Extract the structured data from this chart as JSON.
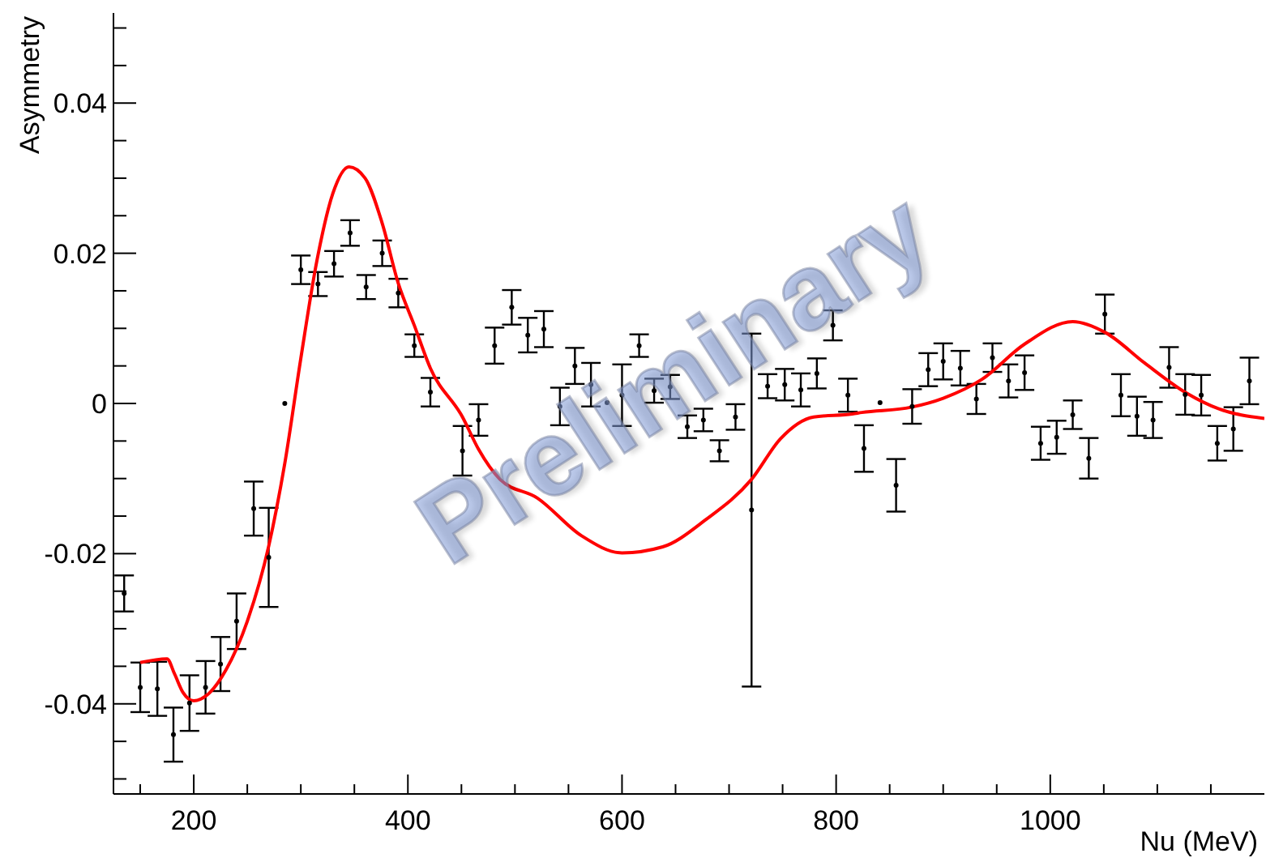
{
  "chart_data": {
    "type": "scatter",
    "xlabel": "Nu (MeV)",
    "ylabel": "Asymmetry",
    "xlim": [
      125,
      1200
    ],
    "ylim": [
      -0.052,
      0.052
    ],
    "xticks": [
      {
        "value": 150,
        "label": null
      },
      200,
      {
        "value": 250,
        "label": null
      },
      {
        "value": 300,
        "label": null
      },
      {
        "value": 350,
        "label": null
      },
      400,
      {
        "value": 450,
        "label": null
      },
      {
        "value": 500,
        "label": null
      },
      {
        "value": 550,
        "label": null
      },
      600,
      {
        "value": 650,
        "label": null
      },
      {
        "value": 700,
        "label": null
      },
      {
        "value": 750,
        "label": null
      },
      800,
      {
        "value": 850,
        "label": null
      },
      {
        "value": 900,
        "label": null
      },
      {
        "value": 950,
        "label": null
      },
      1000,
      {
        "value": 1050,
        "label": null
      },
      {
        "value": 1100,
        "label": null
      },
      {
        "value": 1150,
        "label": null
      }
    ],
    "yticks": [
      {
        "value": -0.05,
        "label": null
      },
      {
        "value": -0.045,
        "label": null
      },
      -0.04,
      {
        "value": -0.035,
        "label": null
      },
      {
        "value": -0.03,
        "label": null
      },
      {
        "value": -0.025,
        "label": null
      },
      -0.02,
      {
        "value": -0.015,
        "label": null
      },
      {
        "value": -0.01,
        "label": null
      },
      {
        "value": -0.005,
        "label": null
      },
      0,
      {
        "value": 0.005,
        "label": null
      },
      {
        "value": 0.01,
        "label": null
      },
      {
        "value": 0.015,
        "label": null
      },
      0.02,
      {
        "value": 0.025,
        "label": null
      },
      {
        "value": 0.03,
        "label": null
      },
      {
        "value": 0.035,
        "label": null
      },
      0.04,
      {
        "value": 0.045,
        "label": null
      },
      {
        "value": 0.05,
        "label": null
      }
    ],
    "grid": false,
    "legend": false,
    "annotations": [
      "Preliminary"
    ],
    "series": [
      {
        "marker": "circle",
        "color": "#000000",
        "x": [
          135,
          150,
          166,
          181,
          196,
          211,
          225,
          240,
          256,
          270,
          285,
          300,
          316,
          331,
          346,
          361,
          376,
          391,
          406,
          421,
          451,
          466,
          481,
          497,
          512,
          527,
          542,
          556,
          571,
          586,
          600,
          616,
          630,
          645,
          661,
          676,
          691,
          706,
          721,
          736,
          752,
          767,
          782,
          797,
          811,
          826,
          841,
          856,
          871,
          886,
          900,
          916,
          931,
          946,
          961,
          976,
          991,
          1006,
          1021,
          1036,
          1051,
          1066,
          1081,
          1096,
          1111,
          1126,
          1141,
          1156,
          1171,
          1186
        ],
        "values": [
          -0.0253,
          -0.0378,
          -0.038,
          -0.0441,
          -0.0399,
          -0.0378,
          -0.0347,
          -0.029,
          -0.014,
          -0.0205,
          0,
          0.0178,
          0.0159,
          0.0186,
          0.0227,
          0.0155,
          0.02,
          0.0147,
          0.0077,
          0.0015,
          -0.0063,
          -0.0022,
          0.0077,
          0.0128,
          0.0091,
          0.0099,
          -0.0004,
          0.005,
          0.0025,
          0.0001,
          0.0011,
          0.0077,
          0.0017,
          0.0022,
          -0.0031,
          -0.0022,
          -0.0063,
          -0.0018,
          -0.0142,
          0.0023,
          0.0025,
          0.0018,
          0.004,
          0.0104,
          0.0011,
          -0.006,
          0.0001,
          -0.0109,
          -0.0004,
          0.0045,
          0.0056,
          0.0047,
          0.0006,
          0.0061,
          0.003,
          0.0041,
          -0.0053,
          -0.0045,
          -0.0015,
          -0.0073,
          0.0119,
          0.0011,
          -0.0017,
          -0.0022,
          0.0048,
          0.0012,
          0.0011,
          -0.0053,
          -0.0034,
          0.003
        ],
        "errors": [
          0.0024,
          0.0033,
          0.0036,
          0.0036,
          0.0037,
          0.0035,
          0.0036,
          0.0037,
          0.0036,
          0.0066,
          null,
          0.0019,
          0.0016,
          0.0017,
          0.0017,
          0.0016,
          0.0017,
          0.0019,
          0.0015,
          0.0019,
          0.0033,
          0.0021,
          0.0024,
          0.0023,
          0.0023,
          0.0024,
          0.0025,
          0.0024,
          0.0029,
          null,
          0.0041,
          0.0015,
          0.0016,
          0.0016,
          0.0015,
          0.0015,
          0.0014,
          0.0017,
          0.0235,
          0.0016,
          0.0021,
          0.0022,
          0.002,
          0.002,
          0.0022,
          0.0031,
          null,
          0.0035,
          0.0023,
          0.0022,
          0.0024,
          0.0023,
          0.002,
          0.0019,
          0.0022,
          0.0023,
          0.0022,
          0.0022,
          0.0019,
          0.0027,
          0.0026,
          0.0028,
          0.0026,
          0.0024,
          0.0027,
          0.0027,
          0.0027,
          0.0023,
          0.0029,
          0.0031
        ]
      },
      {
        "type": "line",
        "marker": "none",
        "color": "#ff0000",
        "x": [
          150,
          175,
          182,
          190,
          200,
          215,
          230,
          250,
          270,
          285,
          300,
          315,
          330,
          345,
          360,
          376,
          391,
          406,
          421,
          451,
          466,
          486,
          521,
          562,
          600,
          638,
          678,
          721,
          748,
          779,
          815,
          824,
          870,
          900,
          936,
          976,
          1021,
          1052,
          1088,
          1127,
          1157,
          1200
        ],
        "values": [
          -0.0345,
          -0.034,
          -0.036,
          -0.0385,
          -0.0396,
          -0.0385,
          -0.0355,
          -0.029,
          -0.019,
          -0.008,
          0.006,
          0.019,
          0.028,
          0.0315,
          0.03,
          0.024,
          0.016,
          0.0104,
          0.0047,
          -0.0018,
          -0.0061,
          -0.0101,
          -0.0126,
          -0.0176,
          -0.0199,
          -0.0191,
          -0.0155,
          -0.0101,
          -0.0047,
          -0.0018,
          -0.0014,
          -0.0012,
          -0.0005,
          0.0007,
          0.0032,
          0.0079,
          0.0109,
          0.0094,
          0.0054,
          0.0014,
          -0.0007,
          -0.002
        ]
      }
    ]
  }
}
